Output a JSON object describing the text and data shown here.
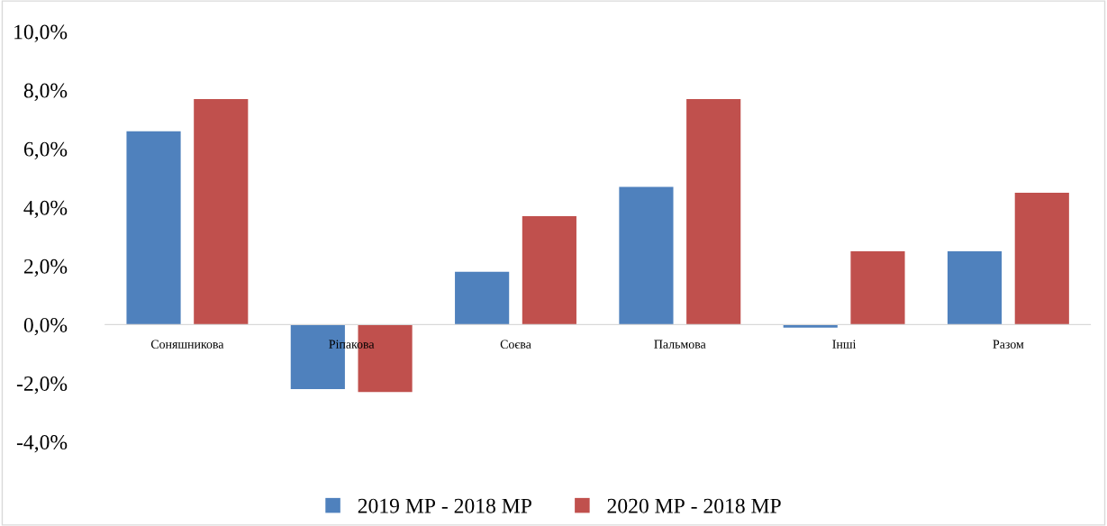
{
  "chart_data": {
    "type": "bar",
    "categories": [
      "Соняшникова",
      "Ріпакова",
      "Соєва",
      "Пальмова",
      "Інші",
      "Разом"
    ],
    "series": [
      {
        "name": "2019 МР - 2018 МР",
        "color": "#4f81bd",
        "values": [
          6.6,
          -2.2,
          1.8,
          4.7,
          -0.1,
          2.5
        ]
      },
      {
        "name": "2020 МР - 2018 МР",
        "color": "#c0504d",
        "values": [
          7.7,
          -2.3,
          3.7,
          7.7,
          2.5,
          4.5
        ]
      }
    ],
    "ylim": [
      -4,
      10
    ],
    "yticks": [
      {
        "value": -4,
        "label": "-4,0%"
      },
      {
        "value": -2,
        "label": "-2,0%"
      },
      {
        "value": 0,
        "label": "0,0%"
      },
      {
        "value": 2,
        "label": "2,0%"
      },
      {
        "value": 4,
        "label": "4,0%"
      },
      {
        "value": 6,
        "label": "6,0%"
      },
      {
        "value": 8,
        "label": "8,0%"
      },
      {
        "value": 10,
        "label": "10,0%"
      }
    ],
    "grid": false,
    "legend": "bottom"
  }
}
